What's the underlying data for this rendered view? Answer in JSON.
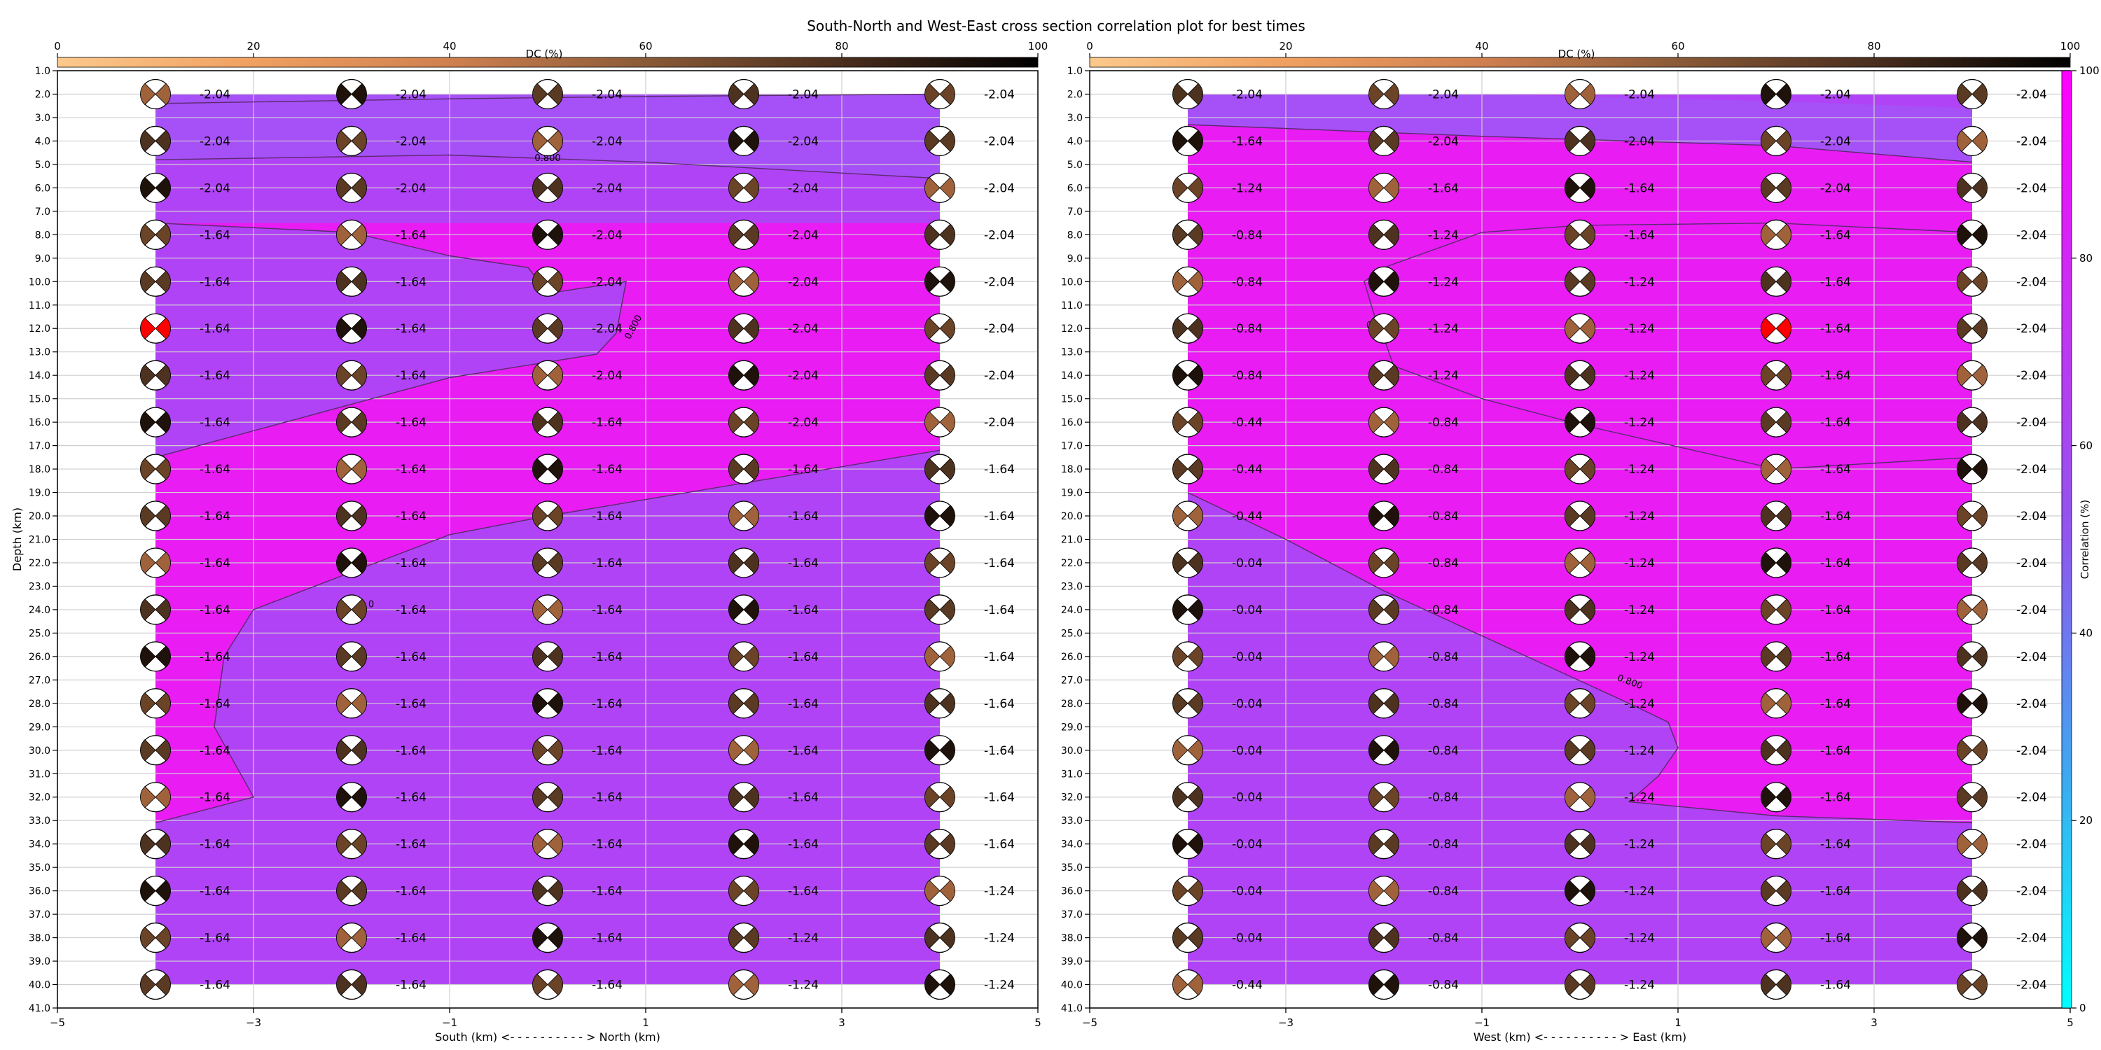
{
  "title": "South-North and West-East cross section correlation plot for best times",
  "colors": {
    "dc_gradient": [
      "#fcc98c",
      "#f0a060",
      "#d08050",
      "#8a5a38",
      "#4a2e1e",
      "#000000"
    ],
    "corr_gradient": [
      "#00ffff",
      "#3fa8f0",
      "#8f57ee",
      "#c632f2",
      "#ff00ff"
    ],
    "region_high": "#e81cf3",
    "region_low": "#b143f6",
    "region_top": "#a650f7",
    "beachball_peak": "#ff0000",
    "grid": "#cfcfcf",
    "contour": "#5a2b6e"
  },
  "dc_colorbar": {
    "label": "DC (%)",
    "ticks": [
      "0",
      "20",
      "40",
      "60",
      "80",
      "100"
    ]
  },
  "corr_colorbar": {
    "label": "Correlation (%)",
    "ticks": [
      "0",
      "20",
      "40",
      "60",
      "80",
      "100"
    ]
  },
  "chart_data": [
    {
      "type": "heatmap",
      "xlabel": "South (km) <- - - - - - - - - - > North (km)",
      "ylabel": "Depth (km)",
      "xlim": [
        -5,
        5
      ],
      "ylim": [
        41,
        1
      ],
      "x_ticks": [
        "−5",
        "−3",
        "−1",
        "1",
        "3",
        "5"
      ],
      "y_ticks": [
        "1.0",
        "2.0",
        "3.0",
        "4.0",
        "5.0",
        "6.0",
        "7.0",
        "8.0",
        "9.0",
        "10.0",
        "11.0",
        "12.0",
        "13.0",
        "14.0",
        "15.0",
        "16.0",
        "17.0",
        "18.0",
        "19.0",
        "20.0",
        "21.0",
        "22.0",
        "23.0",
        "24.0",
        "25.0",
        "26.0",
        "27.0",
        "28.0",
        "29.0",
        "30.0",
        "31.0",
        "32.0",
        "33.0",
        "34.0",
        "35.0",
        "36.0",
        "37.0",
        "38.0",
        "39.0",
        "40.0",
        "41.0"
      ],
      "x": [
        -4,
        -2,
        0,
        2,
        4
      ],
      "depths": [
        2,
        4,
        6,
        8,
        10,
        12,
        14,
        16,
        18,
        20,
        22,
        24,
        26,
        28,
        30,
        32,
        34,
        36,
        38,
        40
      ],
      "magnitudes": [
        [
          "-2.04",
          "-2.04",
          "-2.04",
          "-2.04",
          "-2.04"
        ],
        [
          "-2.04",
          "-2.04",
          "-2.04",
          "-2.04",
          "-2.04"
        ],
        [
          "-2.04",
          "-2.04",
          "-2.04",
          "-2.04",
          "-2.04"
        ],
        [
          "-1.64",
          "-1.64",
          "-2.04",
          "-2.04",
          "-2.04"
        ],
        [
          "-1.64",
          "-1.64",
          "-2.04",
          "-2.04",
          "-2.04"
        ],
        [
          "-1.64",
          "-1.64",
          "-2.04",
          "-2.04",
          "-2.04"
        ],
        [
          "-1.64",
          "-1.64",
          "-2.04",
          "-2.04",
          "-2.04"
        ],
        [
          "-1.64",
          "-1.64",
          "-1.64",
          "-2.04",
          "-2.04"
        ],
        [
          "-1.64",
          "-1.64",
          "-1.64",
          "-1.64",
          "-1.64"
        ],
        [
          "-1.64",
          "-1.64",
          "-1.64",
          "-1.64",
          "-1.64"
        ],
        [
          "-1.64",
          "-1.64",
          "-1.64",
          "-1.64",
          "-1.64"
        ],
        [
          "-1.64",
          "-1.64",
          "-1.64",
          "-1.64",
          "-1.64"
        ],
        [
          "-1.64",
          "-1.64",
          "-1.64",
          "-1.64",
          "-1.64"
        ],
        [
          "-1.64",
          "-1.64",
          "-1.64",
          "-1.64",
          "-1.64"
        ],
        [
          "-1.64",
          "-1.64",
          "-1.64",
          "-1.64",
          "-1.64"
        ],
        [
          "-1.64",
          "-1.64",
          "-1.64",
          "-1.64",
          "-1.64"
        ],
        [
          "-1.64",
          "-1.64",
          "-1.64",
          "-1.64",
          "-1.64"
        ],
        [
          "-1.64",
          "-1.64",
          "-1.64",
          "-1.64",
          "-1.24"
        ],
        [
          "-1.64",
          "-1.64",
          "-1.64",
          "-1.24",
          "-1.24"
        ],
        [
          "-1.64",
          "-1.64",
          "-1.64",
          "-1.24",
          "-1.24"
        ]
      ],
      "high_region": [
        [
          -4,
          7.5
        ],
        [
          -2,
          7.9
        ],
        [
          -1,
          8.9
        ],
        [
          -0.2,
          9.4
        ],
        [
          0,
          10.5
        ],
        [
          0.8,
          10
        ],
        [
          0.7,
          12.2
        ],
        [
          0.5,
          13.1
        ],
        [
          -1,
          14.1
        ],
        [
          -4,
          17.5
        ],
        [
          -4,
          33.1
        ],
        [
          -3,
          32
        ],
        [
          -3.4,
          29
        ],
        [
          -3.3,
          26
        ],
        [
          -3,
          24
        ],
        [
          -1,
          20.8
        ],
        [
          0,
          20
        ],
        [
          4,
          17.2
        ],
        [
          4,
          7.5
        ]
      ],
      "top_region": [
        [
          -4,
          2.0
        ],
        [
          -4,
          4.8
        ],
        [
          -1,
          4.6
        ],
        [
          1,
          4.9
        ],
        [
          4,
          5.6
        ],
        [
          4,
          2.0
        ]
      ],
      "contours": [
        {
          "label": "0.800",
          "label_at": [
            0,
            4.85
          ],
          "points": [
            [
              -4,
              4.8
            ],
            [
              -1,
              4.6
            ],
            [
              1,
              4.9
            ],
            [
              4,
              5.6
            ]
          ]
        },
        {
          "label": "0.800",
          "label_at": [
            0.9,
            12.0
          ],
          "points": [
            [
              -4,
              7.5
            ],
            [
              -2,
              7.9
            ],
            [
              -1,
              8.9
            ],
            [
              -0.2,
              9.4
            ],
            [
              0,
              10.5
            ],
            [
              0.8,
              10
            ],
            [
              0.7,
              12.2
            ],
            [
              0.5,
              13.1
            ],
            [
              -1,
              14.1
            ],
            [
              -4,
              17.5
            ]
          ]
        },
        {
          "label": "0",
          "label_at": [
            -1.8,
            23.9
          ],
          "points": [
            [
              -4,
              33.1
            ],
            [
              -3,
              32
            ],
            [
              -3.4,
              29
            ],
            [
              -3.3,
              26
            ],
            [
              -3,
              24
            ],
            [
              -1,
              20.8
            ],
            [
              0,
              20
            ],
            [
              4,
              17.2
            ]
          ]
        },
        {
          "label": "",
          "label_at": null,
          "points": [
            [
              -4,
              2.4
            ],
            [
              -1,
              2.2
            ],
            [
              1,
              2.1
            ],
            [
              4,
              2.0
            ]
          ]
        }
      ],
      "peak": {
        "row": 5,
        "col": 0
      }
    },
    {
      "type": "heatmap",
      "xlabel": "West (km) <- - - - - - - - - - > East (km)",
      "ylabel": "",
      "xlim": [
        -5,
        5
      ],
      "ylim": [
        41,
        1
      ],
      "x_ticks": [
        "−5",
        "−3",
        "−1",
        "1",
        "3",
        "5"
      ],
      "y_ticks": [
        "1.0",
        "2.0",
        "3.0",
        "4.0",
        "5.0",
        "6.0",
        "7.0",
        "8.0",
        "9.0",
        "10.0",
        "11.0",
        "12.0",
        "13.0",
        "14.0",
        "15.0",
        "16.0",
        "17.0",
        "18.0",
        "19.0",
        "20.0",
        "21.0",
        "22.0",
        "23.0",
        "24.0",
        "25.0",
        "26.0",
        "27.0",
        "28.0",
        "29.0",
        "30.0",
        "31.0",
        "32.0",
        "33.0",
        "34.0",
        "35.0",
        "36.0",
        "37.0",
        "38.0",
        "39.0",
        "40.0",
        "41.0"
      ],
      "x": [
        -4,
        -2,
        0,
        2,
        4
      ],
      "depths": [
        2,
        4,
        6,
        8,
        10,
        12,
        14,
        16,
        18,
        20,
        22,
        24,
        26,
        28,
        30,
        32,
        34,
        36,
        38,
        40
      ],
      "magnitudes": [
        [
          "-2.04",
          "-2.04",
          "-2.04",
          "-2.04",
          "-2.04"
        ],
        [
          "-1.64",
          "-2.04",
          "-2.04",
          "-2.04",
          "-2.04"
        ],
        [
          "-1.24",
          "-1.64",
          "-1.64",
          "-2.04",
          "-2.04"
        ],
        [
          "-0.84",
          "-1.24",
          "-1.64",
          "-1.64",
          "-2.04"
        ],
        [
          "-0.84",
          "-1.24",
          "-1.24",
          "-1.64",
          "-2.04"
        ],
        [
          "-0.84",
          "-1.24",
          "-1.24",
          "-1.64",
          "-2.04"
        ],
        [
          "-0.84",
          "-1.24",
          "-1.24",
          "-1.64",
          "-2.04"
        ],
        [
          "-0.44",
          "-0.84",
          "-1.24",
          "-1.64",
          "-2.04"
        ],
        [
          "-0.44",
          "-0.84",
          "-1.24",
          "-1.64",
          "-2.04"
        ],
        [
          "-0.44",
          "-0.84",
          "-1.24",
          "-1.64",
          "-2.04"
        ],
        [
          "-0.04",
          "-0.84",
          "-1.24",
          "-1.64",
          "-2.04"
        ],
        [
          "-0.04",
          "-0.84",
          "-1.24",
          "-1.64",
          "-2.04"
        ],
        [
          "-0.04",
          "-0.84",
          "-1.24",
          "-1.64",
          "-2.04"
        ],
        [
          "-0.04",
          "-0.84",
          "-1.24",
          "-1.64",
          "-2.04"
        ],
        [
          "-0.04",
          "-0.84",
          "-1.24",
          "-1.64",
          "-2.04"
        ],
        [
          "-0.04",
          "-0.84",
          "-1.24",
          "-1.64",
          "-2.04"
        ],
        [
          "-0.04",
          "-0.84",
          "-1.24",
          "-1.64",
          "-2.04"
        ],
        [
          "-0.04",
          "-0.84",
          "-1.24",
          "-1.64",
          "-2.04"
        ],
        [
          "-0.04",
          "-0.84",
          "-1.24",
          "-1.64",
          "-2.04"
        ],
        [
          "-0.44",
          "-0.84",
          "-1.24",
          "-1.64",
          "-2.04"
        ]
      ],
      "high_region": [
        [
          -4,
          3.3
        ],
        [
          -1,
          3.8
        ],
        [
          2,
          4.2
        ],
        [
          4,
          4.9
        ],
        [
          4,
          17.5
        ],
        [
          2,
          18.0
        ],
        [
          0,
          16.1
        ],
        [
          -1,
          15
        ],
        [
          -1.9,
          13.6
        ],
        [
          -2.0,
          12.4
        ],
        [
          -2.1,
          11.4
        ],
        [
          -2.2,
          10.0
        ],
        [
          -2,
          9.4
        ],
        [
          -1,
          7.9
        ],
        [
          0,
          7.6
        ],
        [
          2,
          7.5
        ],
        [
          4,
          7.9
        ],
        [
          4,
          4.9
        ],
        [
          4,
          33.1
        ],
        [
          2,
          32.8
        ],
        [
          0.5,
          32.2
        ],
        [
          0.8,
          31.1
        ],
        [
          1,
          29.9
        ],
        [
          0.9,
          28.8
        ],
        [
          0.5,
          28.0
        ],
        [
          -2,
          23.2
        ],
        [
          -3,
          21.0
        ],
        [
          -4,
          19.0
        ]
      ],
      "top_region": [
        [
          -4,
          2.0
        ],
        [
          -4,
          3.3
        ],
        [
          -1,
          3.8
        ],
        [
          2,
          4.2
        ],
        [
          4,
          4.9
        ],
        [
          4,
          2.6
        ],
        [
          2,
          2.3
        ],
        [
          -1,
          2.0
        ]
      ],
      "contours": [
        {
          "label": "",
          "label_at": null,
          "points": [
            [
              -4,
              3.3
            ],
            [
              -1,
              3.8
            ],
            [
              2,
              4.2
            ],
            [
              4,
              4.9
            ]
          ]
        },
        {
          "label": "",
          "label_at": null,
          "points": [
            [
              4,
              17.5
            ],
            [
              2,
              18.0
            ],
            [
              0,
              16.1
            ],
            [
              -1,
              15
            ],
            [
              -1.9,
              13.6
            ],
            [
              -2.0,
              12.4
            ],
            [
              -2.1,
              11.4
            ],
            [
              -2.2,
              10.0
            ],
            [
              -2,
              9.4
            ],
            [
              -1,
              7.9
            ],
            [
              0,
              7.6
            ],
            [
              2,
              7.5
            ],
            [
              4,
              7.9
            ]
          ]
        },
        {
          "label": "0.800",
          "label_at": [
            0.5,
            27.2
          ],
          "points": [
            [
              -4,
              19.0
            ],
            [
              -3,
              21.0
            ],
            [
              -2,
              23.2
            ],
            [
              0.5,
              28.0
            ],
            [
              0.9,
              28.8
            ],
            [
              1,
              29.9
            ],
            [
              0.8,
              31.1
            ],
            [
              0.5,
              32.2
            ],
            [
              2,
              32.8
            ],
            [
              4,
              33.1
            ]
          ]
        },
        {
          "label": "0",
          "label_at": [
            -2.15,
            12.0
          ],
          "points": []
        }
      ],
      "peak": {
        "row": 5,
        "col": 3
      }
    }
  ]
}
